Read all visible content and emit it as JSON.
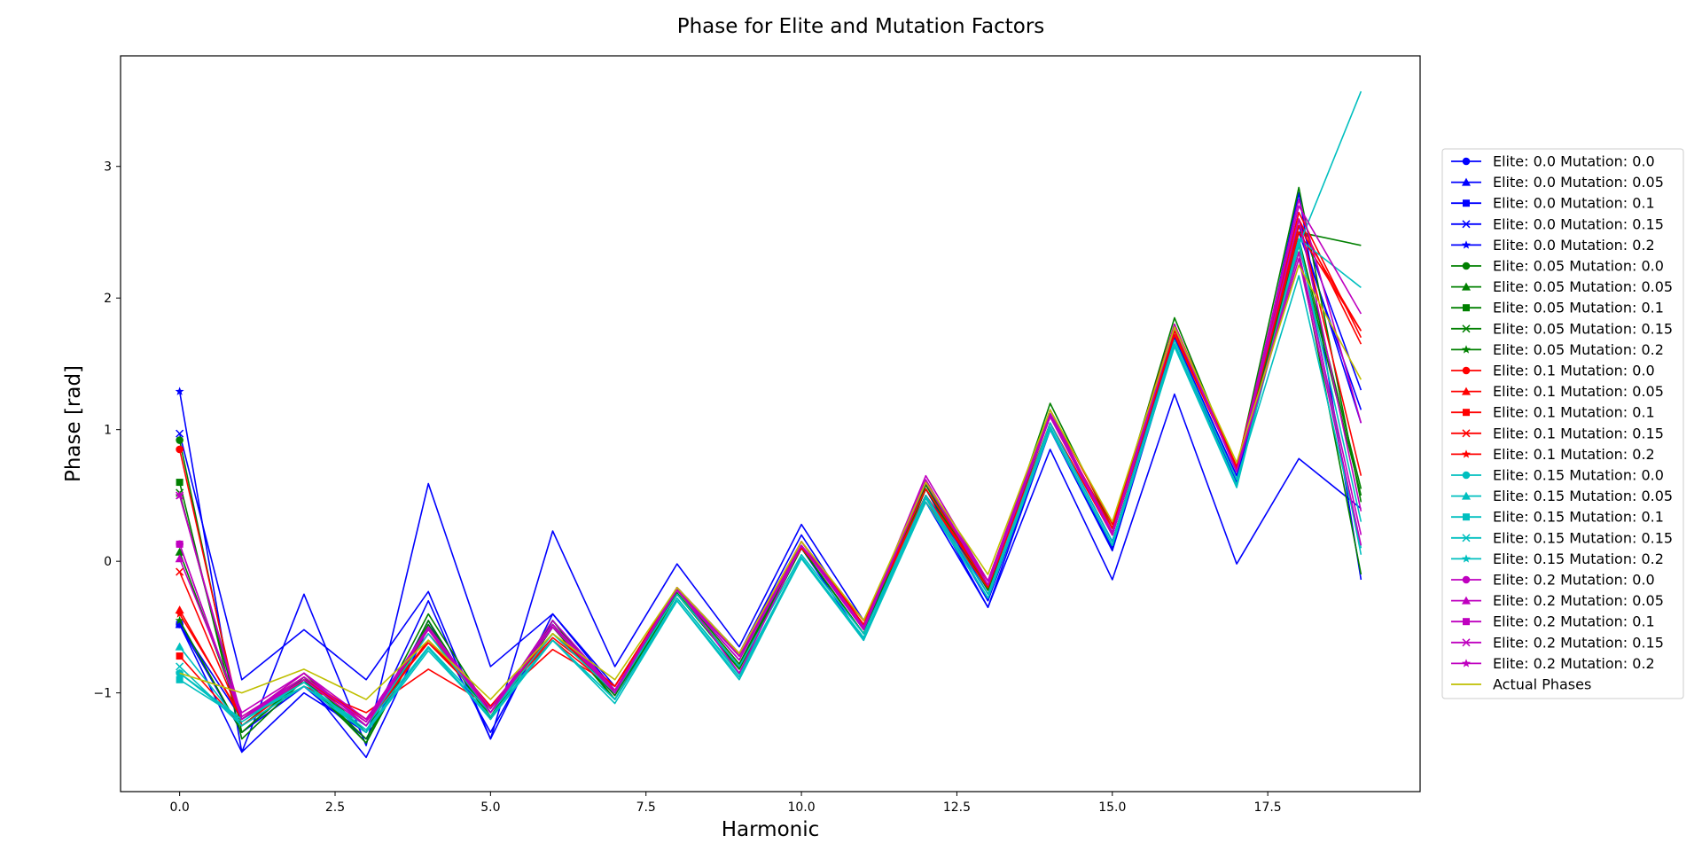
{
  "chart_data": {
    "type": "line",
    "title": "Phase for Elite and Mutation Factors",
    "xlabel": "Harmonic",
    "ylabel": "Phase [rad]",
    "xlim": [
      -0.95,
      19.95
    ],
    "ylim": [
      -1.75,
      3.84
    ],
    "xticks": [
      0,
      2.5,
      5,
      7.5,
      10,
      12.5,
      15,
      17.5
    ],
    "xtick_labels": [
      "0.0",
      "2.5",
      "5.0",
      "7.5",
      "10.0",
      "12.5",
      "15.0",
      "17.5"
    ],
    "yticks": [
      -1,
      0,
      1,
      2,
      3
    ],
    "ytick_labels": [
      "−1",
      "0",
      "1",
      "2",
      "3"
    ],
    "grid": false,
    "legend_position": "right",
    "x": [
      0,
      1,
      2,
      3,
      4,
      5,
      6,
      7,
      8,
      9,
      10,
      11,
      12,
      13,
      14,
      15,
      16,
      17,
      18,
      19
    ],
    "series": [
      {
        "name": "Elite: 0.0 Mutation: 0.0",
        "color": "#0000ff",
        "marker": "o",
        "values": [
          -0.48,
          -1.2,
          -0.9,
          -1.49,
          -0.5,
          -1.2,
          -0.5,
          -1.02,
          -0.25,
          -0.8,
          0.1,
          -0.55,
          0.55,
          -0.25,
          1.05,
          0.15,
          1.7,
          0.65,
          2.6,
          1.3
        ]
      },
      {
        "name": "Elite: 0.0 Mutation: 0.05",
        "color": "#0000ff",
        "marker": "^",
        "values": [
          -0.48,
          -1.3,
          -0.95,
          -1.35,
          -0.45,
          -1.3,
          -0.45,
          -1.0,
          -0.22,
          -0.75,
          0.15,
          -0.5,
          0.5,
          -0.3,
          1.0,
          0.08,
          1.65,
          0.6,
          2.5,
          1.15
        ]
      },
      {
        "name": "Elite: 0.0 Mutation: 0.1",
        "color": "#0000ff",
        "marker": "s",
        "values": [
          -0.48,
          -1.45,
          -1.0,
          -1.3,
          -0.3,
          -1.35,
          -0.4,
          -0.98,
          -0.2,
          -0.7,
          0.2,
          -0.52,
          0.5,
          -0.35,
          1.0,
          0.1,
          1.7,
          0.62,
          2.55,
          1.05
        ]
      },
      {
        "name": "Elite: 0.0 Mutation: 0.15",
        "color": "#0000ff",
        "marker": "x",
        "values": [
          0.97,
          -0.9,
          -0.52,
          -0.9,
          -0.23,
          -1.35,
          0.23,
          -0.8,
          -0.02,
          -0.65,
          0.28,
          -0.45,
          0.45,
          -0.35,
          0.85,
          -0.14,
          1.27,
          -0.02,
          0.78,
          0.4
        ]
      },
      {
        "name": "Elite: 0.0 Mutation: 0.2",
        "color": "#0000ff",
        "marker": "*",
        "values": [
          1.29,
          -1.45,
          -0.25,
          -1.4,
          0.59,
          -0.8,
          -0.4,
          -0.95,
          -0.2,
          -0.7,
          0.1,
          -0.6,
          0.55,
          -0.3,
          1.05,
          0.15,
          1.7,
          0.6,
          2.8,
          -0.14
        ]
      },
      {
        "name": "Elite: 0.05 Mutation: 0.0",
        "color": "#008000",
        "marker": "o",
        "values": [
          0.92,
          -1.3,
          -0.88,
          -1.38,
          -0.45,
          -1.2,
          -0.45,
          -1.05,
          -0.25,
          -0.8,
          0.1,
          -0.55,
          0.55,
          -0.2,
          1.1,
          0.2,
          1.75,
          0.7,
          2.4,
          0.5
        ]
      },
      {
        "name": "Elite: 0.05 Mutation: 0.05",
        "color": "#008000",
        "marker": "^",
        "values": [
          0.07,
          -1.2,
          -0.85,
          -1.3,
          -0.4,
          -1.15,
          -0.45,
          -1.0,
          -0.22,
          -0.78,
          0.12,
          -0.5,
          0.6,
          -0.2,
          1.2,
          0.25,
          1.85,
          0.7,
          2.84,
          0.45
        ]
      },
      {
        "name": "Elite: 0.05 Mutation: 0.1",
        "color": "#008000",
        "marker": "s",
        "values": [
          0.6,
          -1.35,
          -0.9,
          -1.38,
          -0.5,
          -1.2,
          -0.5,
          -1.05,
          -0.25,
          -0.82,
          0.1,
          -0.55,
          0.55,
          -0.22,
          1.15,
          0.2,
          1.8,
          0.68,
          2.35,
          -0.1
        ]
      },
      {
        "name": "Elite: 0.05 Mutation: 0.15",
        "color": "#008000",
        "marker": "x",
        "values": [
          0.52,
          -1.25,
          -0.88,
          -1.3,
          -0.48,
          -1.18,
          -0.48,
          -1.02,
          -0.24,
          -0.8,
          0.1,
          -0.55,
          0.58,
          -0.22,
          1.12,
          0.22,
          1.8,
          0.68,
          2.5,
          2.4
        ]
      },
      {
        "name": "Elite: 0.05 Mutation: 0.2",
        "color": "#008000",
        "marker": "*",
        "values": [
          -0.45,
          -1.3,
          -0.9,
          -1.35,
          -0.5,
          -1.2,
          -0.5,
          -1.05,
          -0.25,
          -0.82,
          0.1,
          -0.55,
          0.55,
          -0.22,
          1.1,
          0.2,
          1.78,
          0.68,
          2.45,
          0.55
        ]
      },
      {
        "name": "Elite: 0.1 Mutation: 0.0",
        "color": "#ff0000",
        "marker": "o",
        "values": [
          0.85,
          -1.25,
          -0.9,
          -1.2,
          -0.55,
          -1.1,
          -0.6,
          -0.98,
          -0.2,
          -0.72,
          0.15,
          -0.48,
          0.5,
          -0.15,
          1.1,
          0.25,
          1.75,
          0.72,
          2.6,
          0.65
        ]
      },
      {
        "name": "Elite: 0.1 Mutation: 0.05",
        "color": "#ff0000",
        "marker": "^",
        "values": [
          -0.37,
          -1.2,
          -0.85,
          -1.25,
          -0.6,
          -1.12,
          -0.55,
          -0.95,
          -0.22,
          -0.7,
          0.15,
          -0.45,
          0.55,
          -0.15,
          1.15,
          0.28,
          1.8,
          0.72,
          2.65,
          1.7
        ]
      },
      {
        "name": "Elite: 0.1 Mutation: 0.1",
        "color": "#ff0000",
        "marker": "s",
        "values": [
          -0.72,
          -1.25,
          -0.95,
          -1.15,
          -0.82,
          -1.1,
          -0.67,
          -0.95,
          -0.2,
          -0.72,
          0.1,
          -0.45,
          0.45,
          -0.2,
          1.05,
          0.2,
          1.72,
          0.7,
          2.5,
          1.75
        ]
      },
      {
        "name": "Elite: 0.1 Mutation: 0.15",
        "color": "#ff0000",
        "marker": "x",
        "values": [
          -0.08,
          -1.2,
          -0.9,
          -1.22,
          -0.6,
          -1.1,
          -0.55,
          -0.95,
          -0.2,
          -0.72,
          0.12,
          -0.45,
          0.5,
          -0.18,
          1.1,
          0.25,
          1.75,
          0.7,
          2.55,
          1.75
        ]
      },
      {
        "name": "Elite: 0.1 Mutation: 0.2",
        "color": "#ff0000",
        "marker": "*",
        "values": [
          -0.4,
          -1.18,
          -0.88,
          -1.2,
          -0.62,
          -1.1,
          -0.58,
          -0.95,
          -0.2,
          -0.72,
          0.12,
          -0.48,
          0.5,
          -0.18,
          1.1,
          0.25,
          1.72,
          0.7,
          2.6,
          1.65
        ]
      },
      {
        "name": "Elite: 0.15 Mutation: 0.0",
        "color": "#00bfbf",
        "marker": "o",
        "values": [
          -0.85,
          -1.2,
          -0.95,
          -1.25,
          -0.55,
          -1.15,
          -0.55,
          -1.0,
          -0.25,
          -0.8,
          0.05,
          -0.55,
          0.5,
          -0.25,
          1.05,
          0.15,
          1.68,
          0.62,
          2.17,
          0.1
        ]
      },
      {
        "name": "Elite: 0.15 Mutation: 0.05",
        "color": "#00bfbf",
        "marker": "^",
        "values": [
          -0.65,
          -1.25,
          -0.95,
          -1.3,
          -0.65,
          -1.2,
          -0.6,
          -1.08,
          -0.3,
          -0.88,
          0.02,
          -0.6,
          0.45,
          -0.28,
          1.0,
          0.12,
          1.65,
          0.58,
          2.4,
          3.57
        ]
      },
      {
        "name": "Elite: 0.15 Mutation: 0.1",
        "color": "#00bfbf",
        "marker": "s",
        "values": [
          -0.9,
          -1.2,
          -0.92,
          -1.3,
          -0.68,
          -1.18,
          -0.6,
          -1.05,
          -0.28,
          -0.85,
          0.03,
          -0.58,
          0.48,
          -0.28,
          1.02,
          0.12,
          1.65,
          0.58,
          2.45,
          2.08
        ]
      },
      {
        "name": "Elite: 0.15 Mutation: 0.15",
        "color": "#00bfbf",
        "marker": "x",
        "values": [
          -0.8,
          -1.25,
          -0.95,
          -1.25,
          -0.65,
          -1.15,
          -0.6,
          -1.05,
          -0.3,
          -0.9,
          0.03,
          -0.6,
          0.48,
          -0.28,
          1.02,
          0.12,
          1.63,
          0.56,
          2.45,
          0.05
        ]
      },
      {
        "name": "Elite: 0.15 Mutation: 0.2",
        "color": "#00bfbf",
        "marker": "*",
        "values": [
          -0.85,
          -1.22,
          -0.92,
          -1.28,
          -0.66,
          -1.18,
          -0.6,
          -1.05,
          -0.28,
          -0.86,
          0.03,
          -0.58,
          0.48,
          -0.28,
          1.02,
          0.12,
          1.65,
          0.58,
          2.42,
          0.3
        ]
      },
      {
        "name": "Elite: 0.2 Mutation: 0.0",
        "color": "#bf00bf",
        "marker": "o",
        "values": [
          0.13,
          -1.2,
          -0.85,
          -1.2,
          -0.5,
          -1.15,
          -0.45,
          -0.98,
          -0.2,
          -0.7,
          0.15,
          -0.5,
          0.65,
          -0.15,
          1.15,
          0.2,
          1.8,
          0.68,
          2.3,
          0.12
        ]
      },
      {
        "name": "Elite: 0.2 Mutation: 0.05",
        "color": "#bf00bf",
        "marker": "^",
        "values": [
          0.02,
          -1.15,
          -0.85,
          -1.25,
          -0.5,
          -1.12,
          -0.48,
          -0.98,
          -0.22,
          -0.72,
          0.12,
          -0.5,
          0.6,
          -0.15,
          1.12,
          0.22,
          1.78,
          0.68,
          2.7,
          1.88
        ]
      },
      {
        "name": "Elite: 0.2 Mutation: 0.1",
        "color": "#bf00bf",
        "marker": "s",
        "values": [
          0.13,
          -1.2,
          -0.88,
          -1.22,
          -0.52,
          -1.15,
          -0.5,
          -1.0,
          -0.2,
          -0.85,
          0.12,
          -0.5,
          0.62,
          -0.18,
          1.12,
          0.22,
          1.8,
          0.68,
          2.35,
          0.2
        ]
      },
      {
        "name": "Elite: 0.2 Mutation: 0.15",
        "color": "#bf00bf",
        "marker": "x",
        "values": [
          0.5,
          -1.2,
          -0.9,
          -1.25,
          -0.5,
          -1.15,
          -0.5,
          -0.98,
          -0.22,
          -0.75,
          0.12,
          -0.52,
          0.6,
          -0.18,
          1.1,
          0.2,
          1.78,
          0.68,
          2.75,
          1.05
        ]
      },
      {
        "name": "Elite: 0.2 Mutation: 0.2",
        "color": "#bf00bf",
        "marker": "*",
        "values": [
          0.5,
          -1.18,
          -0.88,
          -1.22,
          -0.5,
          -1.12,
          -0.48,
          -0.98,
          -0.2,
          -0.72,
          0.12,
          -0.5,
          0.6,
          -0.18,
          1.1,
          0.2,
          1.78,
          0.68,
          2.6,
          0.38
        ]
      },
      {
        "name": "Actual Phases",
        "color": "#bfbf00",
        "marker": "",
        "values": [
          -0.85,
          -1.0,
          -0.82,
          -1.05,
          -0.6,
          -1.05,
          -0.55,
          -0.9,
          -0.2,
          -0.7,
          0.15,
          -0.45,
          0.6,
          -0.1,
          1.15,
          0.3,
          1.78,
          0.75,
          2.25,
          1.38
        ]
      }
    ]
  }
}
